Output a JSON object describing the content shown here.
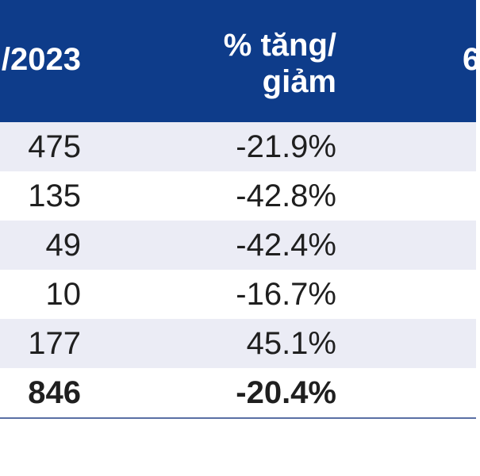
{
  "header": {
    "col_year": "/2023",
    "col_change": "% tăng/\ngiảm",
    "col_next": "6"
  },
  "rows": [
    {
      "value": "475",
      "change": "-21.9%"
    },
    {
      "value": "135",
      "change": "-42.8%"
    },
    {
      "value": "49",
      "change": "-42.4%"
    },
    {
      "value": "10",
      "change": "-16.7%"
    },
    {
      "value": "177",
      "change": "45.1%"
    },
    {
      "value": "846",
      "change": "-20.4%"
    }
  ],
  "colors": {
    "header_bg": "#0e3c8a",
    "row_shaded": "#ebecf5",
    "rule": "#5a6fa4"
  }
}
